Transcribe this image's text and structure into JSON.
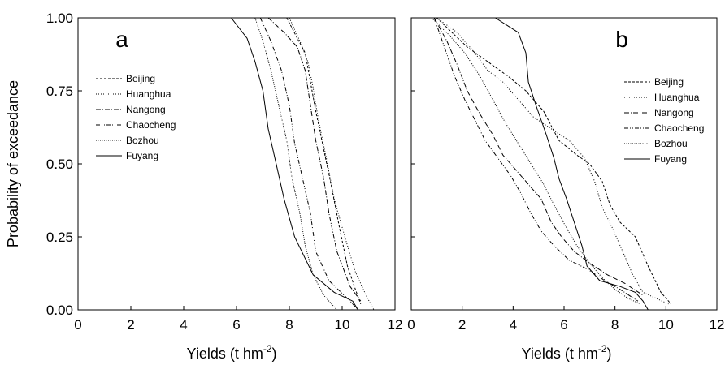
{
  "figure": {
    "y_axis_label": "Probability of exceedance",
    "x_axis_label_prefix": "Yields (t hm",
    "x_axis_label_sup": "-2",
    "x_axis_label_suffix": ")"
  },
  "chart_data": [
    {
      "type": "line",
      "panel_label": "a",
      "xlabel": "Yields (t hm-2)",
      "ylabel": "Probability of exceedance",
      "xlim": [
        0,
        12
      ],
      "ylim": [
        0,
        1
      ],
      "x_ticks": [
        "0",
        "2",
        "4",
        "6",
        "8",
        "10",
        "12"
      ],
      "y_ticks": [
        "0.00",
        "0.25",
        "0.50",
        "0.75",
        "1.00"
      ],
      "grid": false,
      "legend_position": "top-left",
      "series": [
        {
          "name": "Beijing",
          "dash": "3,2",
          "points": [
            [
              7.9,
              1.0
            ],
            [
              8.3,
              0.93
            ],
            [
              8.6,
              0.88
            ],
            [
              8.8,
              0.78
            ],
            [
              9.0,
              0.68
            ],
            [
              9.3,
              0.55
            ],
            [
              9.6,
              0.42
            ],
            [
              9.9,
              0.28
            ],
            [
              10.2,
              0.15
            ],
            [
              10.5,
              0.07
            ],
            [
              10.7,
              0.02
            ]
          ]
        },
        {
          "name": "Huanghua",
          "dash": "1,2",
          "points": [
            [
              8.0,
              1.0
            ],
            [
              8.4,
              0.92
            ],
            [
              8.7,
              0.85
            ],
            [
              8.9,
              0.76
            ],
            [
              9.1,
              0.65
            ],
            [
              9.4,
              0.52
            ],
            [
              9.7,
              0.38
            ],
            [
              10.1,
              0.25
            ],
            [
              10.5,
              0.13
            ],
            [
              10.9,
              0.05
            ],
            [
              11.2,
              0.0
            ]
          ]
        },
        {
          "name": "Nangong",
          "dash": "6,2,1,2",
          "points": [
            [
              7.2,
              1.0
            ],
            [
              7.8,
              0.95
            ],
            [
              8.3,
              0.9
            ],
            [
              8.6,
              0.82
            ],
            [
              8.8,
              0.7
            ],
            [
              9.0,
              0.58
            ],
            [
              9.3,
              0.45
            ],
            [
              9.5,
              0.33
            ],
            [
              9.8,
              0.2
            ],
            [
              10.3,
              0.08
            ],
            [
              10.7,
              0.03
            ]
          ]
        },
        {
          "name": "Chaocheng",
          "dash": "5,2,1,2,1,2",
          "points": [
            [
              6.9,
              1.0
            ],
            [
              7.3,
              0.92
            ],
            [
              7.7,
              0.82
            ],
            [
              8.0,
              0.7
            ],
            [
              8.2,
              0.57
            ],
            [
              8.5,
              0.45
            ],
            [
              8.8,
              0.33
            ],
            [
              9.0,
              0.2
            ],
            [
              9.5,
              0.1
            ],
            [
              10.3,
              0.03
            ],
            [
              10.6,
              0.0
            ]
          ]
        },
        {
          "name": "Bozhou",
          "dash": "1,1.5",
          "points": [
            [
              6.7,
              1.0
            ],
            [
              7.0,
              0.92
            ],
            [
              7.3,
              0.82
            ],
            [
              7.6,
              0.7
            ],
            [
              7.9,
              0.58
            ],
            [
              8.1,
              0.45
            ],
            [
              8.4,
              0.33
            ],
            [
              8.6,
              0.22
            ],
            [
              8.9,
              0.12
            ],
            [
              9.3,
              0.05
            ],
            [
              9.8,
              0.0
            ]
          ]
        },
        {
          "name": "Fuyang",
          "dash": "",
          "points": [
            [
              5.8,
              1.0
            ],
            [
              6.4,
              0.93
            ],
            [
              6.7,
              0.85
            ],
            [
              7.0,
              0.75
            ],
            [
              7.2,
              0.62
            ],
            [
              7.5,
              0.5
            ],
            [
              7.8,
              0.38
            ],
            [
              8.2,
              0.25
            ],
            [
              8.9,
              0.12
            ],
            [
              9.7,
              0.06
            ],
            [
              10.4,
              0.03
            ],
            [
              10.6,
              0.0
            ]
          ]
        }
      ]
    },
    {
      "type": "line",
      "panel_label": "b",
      "xlabel": "Yields (t hm-2)",
      "ylabel": "Probability of exceedance",
      "xlim": [
        0,
        12
      ],
      "ylim": [
        0,
        1
      ],
      "x_ticks": [
        "0",
        "2",
        "4",
        "6",
        "8",
        "10",
        "12"
      ],
      "y_ticks": [],
      "grid": false,
      "legend_position": "right",
      "series": [
        {
          "name": "Beijing",
          "dash": "3,2",
          "points": [
            [
              1.0,
              1.0
            ],
            [
              1.6,
              0.95
            ],
            [
              2.2,
              0.9
            ],
            [
              3.0,
              0.85
            ],
            [
              3.8,
              0.8
            ],
            [
              4.5,
              0.75
            ],
            [
              5.2,
              0.68
            ],
            [
              5.8,
              0.58
            ],
            [
              6.5,
              0.53
            ],
            [
              7.0,
              0.5
            ],
            [
              7.5,
              0.44
            ],
            [
              7.8,
              0.36
            ],
            [
              8.2,
              0.3
            ],
            [
              8.8,
              0.25
            ],
            [
              9.3,
              0.15
            ],
            [
              9.8,
              0.06
            ],
            [
              10.2,
              0.02
            ]
          ]
        },
        {
          "name": "Huanghua",
          "dash": "1,2",
          "points": [
            [
              1.0,
              1.0
            ],
            [
              1.8,
              0.95
            ],
            [
              2.5,
              0.88
            ],
            [
              3.0,
              0.82
            ],
            [
              3.6,
              0.78
            ],
            [
              4.2,
              0.72
            ],
            [
              4.8,
              0.66
            ],
            [
              5.5,
              0.62
            ],
            [
              6.2,
              0.58
            ],
            [
              6.8,
              0.52
            ],
            [
              7.2,
              0.44
            ],
            [
              7.5,
              0.35
            ],
            [
              7.9,
              0.28
            ],
            [
              8.3,
              0.2
            ],
            [
              8.7,
              0.12
            ],
            [
              9.1,
              0.06
            ],
            [
              10.1,
              0.02
            ]
          ]
        },
        {
          "name": "Nangong",
          "dash": "6,2,1,2",
          "points": [
            [
              0.9,
              1.0
            ],
            [
              1.4,
              0.92
            ],
            [
              1.8,
              0.84
            ],
            [
              2.2,
              0.75
            ],
            [
              2.7,
              0.67
            ],
            [
              3.2,
              0.6
            ],
            [
              3.6,
              0.53
            ],
            [
              4.1,
              0.48
            ],
            [
              4.6,
              0.43
            ],
            [
              5.1,
              0.38
            ],
            [
              5.5,
              0.3
            ],
            [
              5.9,
              0.25
            ],
            [
              6.4,
              0.2
            ],
            [
              7.0,
              0.16
            ],
            [
              7.7,
              0.12
            ],
            [
              8.4,
              0.09
            ],
            [
              9.1,
              0.05
            ]
          ]
        },
        {
          "name": "Chaocheng",
          "dash": "5,2,1,2,1,2",
          "points": [
            [
              0.9,
              1.0
            ],
            [
              1.3,
              0.9
            ],
            [
              1.7,
              0.8
            ],
            [
              2.1,
              0.72
            ],
            [
              2.5,
              0.65
            ],
            [
              2.9,
              0.58
            ],
            [
              3.4,
              0.52
            ],
            [
              3.9,
              0.46
            ],
            [
              4.3,
              0.4
            ],
            [
              4.7,
              0.33
            ],
            [
              5.1,
              0.27
            ],
            [
              5.6,
              0.22
            ],
            [
              6.2,
              0.17
            ],
            [
              6.9,
              0.14
            ],
            [
              7.6,
              0.1
            ],
            [
              8.2,
              0.07
            ],
            [
              8.9,
              0.03
            ]
          ]
        },
        {
          "name": "Bozhou",
          "dash": "1,1.5",
          "points": [
            [
              0.8,
              1.0
            ],
            [
              1.5,
              0.94
            ],
            [
              2.1,
              0.88
            ],
            [
              2.7,
              0.8
            ],
            [
              3.2,
              0.72
            ],
            [
              3.7,
              0.64
            ],
            [
              4.2,
              0.57
            ],
            [
              4.7,
              0.5
            ],
            [
              5.2,
              0.43
            ],
            [
              5.6,
              0.36
            ],
            [
              6.1,
              0.28
            ],
            [
              6.5,
              0.22
            ],
            [
              7.0,
              0.16
            ],
            [
              7.5,
              0.11
            ],
            [
              8.0,
              0.07
            ],
            [
              8.5,
              0.04
            ],
            [
              9.0,
              0.02
            ]
          ]
        },
        {
          "name": "Fuyang",
          "dash": "",
          "points": [
            [
              3.3,
              1.0
            ],
            [
              4.2,
              0.95
            ],
            [
              4.5,
              0.88
            ],
            [
              4.6,
              0.78
            ],
            [
              4.9,
              0.7
            ],
            [
              5.3,
              0.6
            ],
            [
              5.6,
              0.52
            ],
            [
              5.8,
              0.45
            ],
            [
              6.1,
              0.38
            ],
            [
              6.4,
              0.3
            ],
            [
              6.7,
              0.22
            ],
            [
              6.9,
              0.15
            ],
            [
              7.4,
              0.1
            ],
            [
              8.2,
              0.08
            ],
            [
              8.8,
              0.06
            ],
            [
              9.1,
              0.03
            ],
            [
              9.3,
              0.0
            ]
          ]
        }
      ]
    }
  ]
}
